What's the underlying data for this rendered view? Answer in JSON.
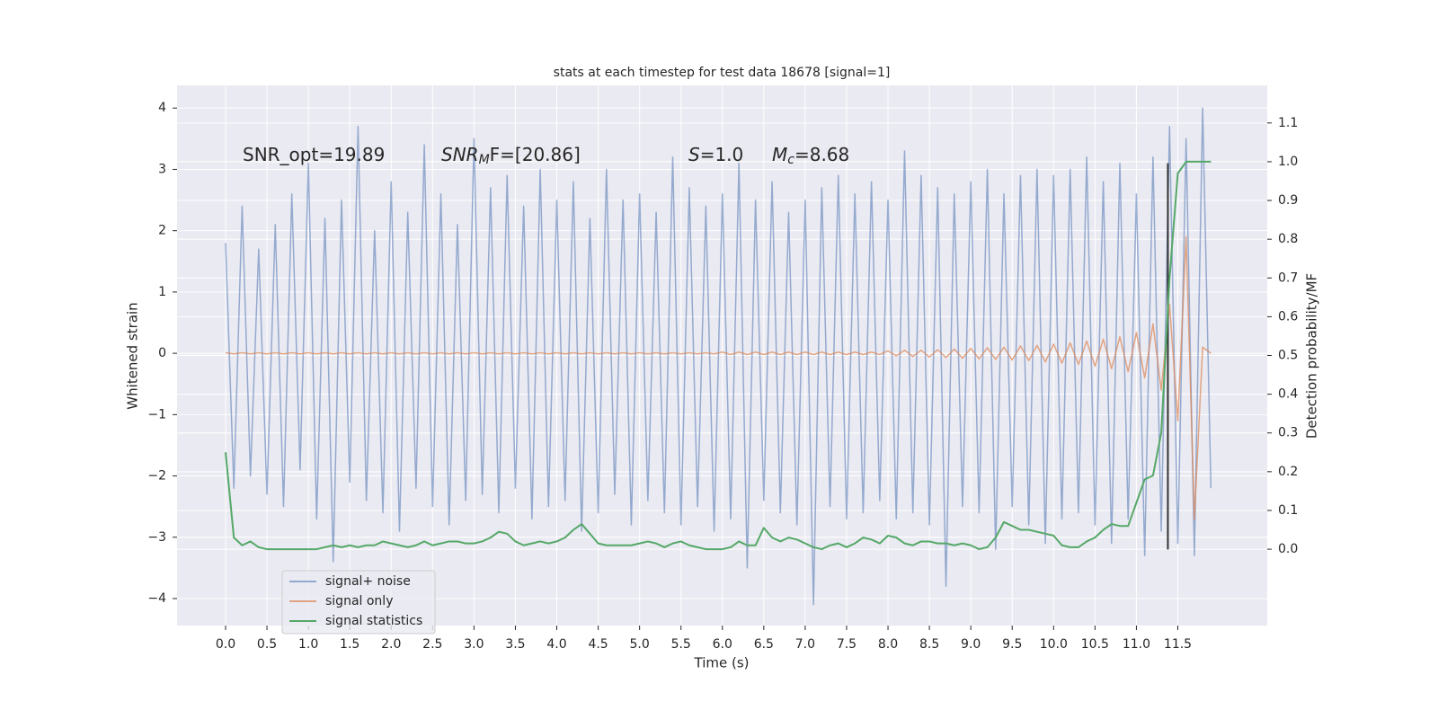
{
  "chart_data": {
    "type": "line",
    "title": "stats at each timestep for test data 18678 [signal=1]",
    "xlabel": "Time (s)",
    "ylabel": "Whitened strain",
    "y2label": "Detection probability/MF",
    "annotations": [
      {
        "text": "SNR_opt=19.89"
      },
      {
        "text": "SNR",
        "sub": "M",
        "after": "F=[20.86]",
        "italic": true
      },
      {
        "text": "S",
        "after": "=1.0",
        "italic": true
      },
      {
        "text": "M",
        "sub": "c",
        "after": "=8.68",
        "italic": true
      }
    ],
    "grid": true,
    "legend": "lower left",
    "xlim": [
      -0.586,
      12.58
    ],
    "ylim": [
      -4.44,
      4.37
    ],
    "y2lim": [
      -0.197,
      1.197
    ],
    "xticks": [
      {
        "value": 0,
        "label": "0.0"
      },
      {
        "value": 0.5,
        "label": "0.5"
      },
      {
        "value": 1,
        "label": "1.0"
      },
      {
        "value": 1.5,
        "label": "1.5"
      },
      {
        "value": 2,
        "label": "2.0"
      },
      {
        "value": 2.5,
        "label": "2.5"
      },
      {
        "value": 3,
        "label": "3.0"
      },
      {
        "value": 3.5,
        "label": "3.5"
      },
      {
        "value": 4,
        "label": "4.0"
      },
      {
        "value": 4.5,
        "label": "4.5"
      },
      {
        "value": 5,
        "label": "5.0"
      },
      {
        "value": 5.5,
        "label": "5.5"
      },
      {
        "value": 6,
        "label": "6.0"
      },
      {
        "value": 6.5,
        "label": "6.5"
      },
      {
        "value": 7,
        "label": "7.0"
      },
      {
        "value": 7.5,
        "label": "7.5"
      },
      {
        "value": 8,
        "label": "8.0"
      },
      {
        "value": 8.5,
        "label": "8.5"
      },
      {
        "value": 9,
        "label": "9.0"
      },
      {
        "value": 9.5,
        "label": "9.5"
      },
      {
        "value": 10,
        "label": "10.0"
      },
      {
        "value": 10.5,
        "label": "10.5"
      },
      {
        "value": 11,
        "label": "11.0"
      },
      {
        "value": 11.5,
        "label": "11.5"
      }
    ],
    "yticks": [
      {
        "value": -4,
        "label": "−4"
      },
      {
        "value": -3,
        "label": "−3"
      },
      {
        "value": -2,
        "label": "−2"
      },
      {
        "value": -1,
        "label": "−1"
      },
      0,
      1,
      2,
      3,
      4
    ],
    "y2ticks": [
      {
        "value": 0,
        "label": "0.0"
      },
      {
        "value": 0.1,
        "label": "0.1"
      },
      {
        "value": 0.2,
        "label": "0.2"
      },
      {
        "value": 0.3,
        "label": "0.3"
      },
      {
        "value": 0.4,
        "label": "0.4"
      },
      {
        "value": 0.5,
        "label": "0.5"
      },
      {
        "value": 0.6,
        "label": "0.6"
      },
      {
        "value": 0.7,
        "label": "0.7"
      },
      {
        "value": 0.8,
        "label": "0.8"
      },
      {
        "value": 0.9,
        "label": "0.9"
      },
      {
        "value": 1,
        "label": "1.0"
      },
      {
        "value": 1.1,
        "label": "1.1"
      }
    ],
    "x": [
      0.0,
      0.1,
      0.2,
      0.3,
      0.4,
      0.5,
      0.6,
      0.7,
      0.8,
      0.9,
      1.0,
      1.1,
      1.2,
      1.3,
      1.4,
      1.5,
      1.6,
      1.7,
      1.8,
      1.9,
      2.0,
      2.1,
      2.2,
      2.3,
      2.4,
      2.5,
      2.6,
      2.7,
      2.8,
      2.9,
      3.0,
      3.1,
      3.2,
      3.3,
      3.4,
      3.5,
      3.6,
      3.7,
      3.8,
      3.9,
      4.0,
      4.1,
      4.2,
      4.3,
      4.4,
      4.5,
      4.6,
      4.7,
      4.8,
      4.9,
      5.0,
      5.1,
      5.2,
      5.3,
      5.4,
      5.5,
      5.6,
      5.7,
      5.8,
      5.9,
      6.0,
      6.1,
      6.2,
      6.3,
      6.4,
      6.5,
      6.6,
      6.7,
      6.8,
      6.9,
      7.0,
      7.1,
      7.2,
      7.3,
      7.4,
      7.5,
      7.6,
      7.7,
      7.8,
      7.9,
      8.0,
      8.1,
      8.2,
      8.3,
      8.4,
      8.5,
      8.6,
      8.7,
      8.8,
      8.9,
      9.0,
      9.1,
      9.2,
      9.3,
      9.4,
      9.5,
      9.6,
      9.7,
      9.8,
      9.9,
      10.0,
      10.1,
      10.2,
      10.3,
      10.4,
      10.5,
      10.6,
      10.7,
      10.8,
      10.9,
      11.0,
      11.1,
      11.2,
      11.3,
      11.4,
      11.5,
      11.6,
      11.7,
      11.8,
      11.9
    ],
    "series": [
      {
        "name": "signal+ noise",
        "color": "#4c72b0",
        "opacity": 0.55,
        "values": [
          1.8,
          -2.2,
          2.4,
          -2.0,
          1.7,
          -2.3,
          2.1,
          -2.5,
          2.6,
          -1.9,
          3.1,
          -2.7,
          2.2,
          -3.4,
          2.5,
          -2.1,
          3.7,
          -2.4,
          2.0,
          -2.6,
          2.8,
          -2.9,
          2.3,
          -2.2,
          3.4,
          -2.5,
          2.6,
          -2.8,
          2.1,
          -2.4,
          3.5,
          -2.3,
          2.7,
          -2.6,
          2.9,
          -2.2,
          2.4,
          -2.7,
          3.0,
          -2.5,
          2.5,
          -2.4,
          2.8,
          -2.9,
          2.2,
          -2.6,
          3.0,
          -2.3,
          2.5,
          -2.8,
          2.6,
          -2.4,
          2.3,
          -2.6,
          3.2,
          -2.8,
          2.7,
          -2.5,
          2.4,
          -2.9,
          2.6,
          -2.7,
          3.1,
          -3.5,
          2.5,
          -2.4,
          2.8,
          -2.6,
          2.3,
          -2.8,
          2.5,
          -4.1,
          2.7,
          -2.5,
          2.9,
          -2.7,
          2.6,
          -2.6,
          2.8,
          -2.4,
          2.5,
          -2.7,
          3.3,
          -2.6,
          2.9,
          -2.8,
          2.7,
          -3.8,
          2.6,
          -2.5,
          2.8,
          -2.6,
          3.0,
          -3.2,
          2.6,
          -2.5,
          2.9,
          -2.8,
          3.0,
          -3.1,
          2.9,
          -2.7,
          3.0,
          -2.6,
          3.2,
          -2.8,
          2.8,
          -3.1,
          3.1,
          -2.7,
          2.6,
          -3.3,
          3.2,
          -2.9,
          3.7,
          -3.1,
          3.5,
          -3.3,
          4.0,
          -2.2
        ]
      },
      {
        "name": "signal only",
        "color": "#dd8452",
        "opacity": 0.7,
        "values": [
          0.01,
          -0.01,
          0.01,
          -0.01,
          0.01,
          -0.01,
          0.01,
          -0.01,
          0.01,
          -0.01,
          0.01,
          -0.01,
          0.01,
          -0.01,
          0.01,
          -0.01,
          0.01,
          -0.01,
          0.01,
          -0.01,
          0.01,
          -0.01,
          0.01,
          -0.01,
          0.01,
          -0.01,
          0.01,
          -0.01,
          0.01,
          -0.01,
          0.01,
          -0.01,
          0.01,
          -0.01,
          0.01,
          -0.01,
          0.01,
          -0.01,
          0.01,
          -0.01,
          0.01,
          -0.01,
          0.01,
          -0.01,
          0.01,
          -0.01,
          0.01,
          -0.01,
          0.01,
          -0.01,
          0.01,
          -0.01,
          0.01,
          -0.01,
          0.01,
          -0.01,
          0.01,
          -0.01,
          0.01,
          -0.01,
          0.02,
          -0.02,
          0.02,
          -0.02,
          0.02,
          -0.02,
          0.02,
          -0.02,
          0.02,
          -0.02,
          0.02,
          -0.02,
          0.02,
          -0.02,
          0.02,
          -0.02,
          0.02,
          -0.02,
          0.02,
          -0.02,
          0.04,
          -0.04,
          0.05,
          -0.05,
          0.05,
          -0.06,
          0.06,
          -0.07,
          0.07,
          -0.08,
          0.08,
          -0.09,
          0.09,
          -0.1,
          0.1,
          -0.11,
          0.12,
          -0.12,
          0.13,
          -0.14,
          0.15,
          -0.16,
          0.17,
          -0.18,
          0.2,
          -0.21,
          0.23,
          -0.25,
          0.27,
          -0.3,
          0.34,
          -0.4,
          0.48,
          -0.6,
          0.8,
          -1.1,
          1.9,
          -2.7,
          0.1,
          0.0
        ]
      },
      {
        "name": "signal statistics",
        "color": "#55a868",
        "axis": "y2",
        "opacity": 1,
        "values": [
          0.25,
          0.03,
          0.01,
          0.02,
          0.005,
          0.0,
          0.0,
          0.0,
          0.0,
          0.0,
          0.0,
          0.0,
          0.005,
          0.01,
          0.005,
          0.01,
          0.005,
          0.01,
          0.01,
          0.02,
          0.015,
          0.01,
          0.005,
          0.01,
          0.02,
          0.01,
          0.015,
          0.02,
          0.02,
          0.015,
          0.015,
          0.02,
          0.03,
          0.045,
          0.04,
          0.02,
          0.01,
          0.015,
          0.02,
          0.015,
          0.02,
          0.03,
          0.05,
          0.065,
          0.04,
          0.015,
          0.01,
          0.01,
          0.01,
          0.01,
          0.015,
          0.02,
          0.015,
          0.005,
          0.015,
          0.02,
          0.01,
          0.005,
          0.0,
          0.0,
          0.0,
          0.005,
          0.02,
          0.01,
          0.01,
          0.055,
          0.03,
          0.02,
          0.03,
          0.025,
          0.015,
          0.005,
          0.0,
          0.01,
          0.015,
          0.005,
          0.015,
          0.03,
          0.025,
          0.015,
          0.035,
          0.03,
          0.015,
          0.01,
          0.02,
          0.02,
          0.015,
          0.015,
          0.01,
          0.015,
          0.01,
          0.0,
          0.005,
          0.03,
          0.07,
          0.06,
          0.05,
          0.05,
          0.045,
          0.04,
          0.035,
          0.01,
          0.005,
          0.005,
          0.02,
          0.03,
          0.05,
          0.065,
          0.06,
          0.06,
          0.12,
          0.18,
          0.19,
          0.3,
          0.7,
          0.97,
          1.0,
          1.0,
          1.0,
          1.0
        ]
      }
    ],
    "vline": {
      "x": 11.38,
      "ymin": -3.2,
      "ymax": 3.1,
      "color": "#333333"
    }
  }
}
